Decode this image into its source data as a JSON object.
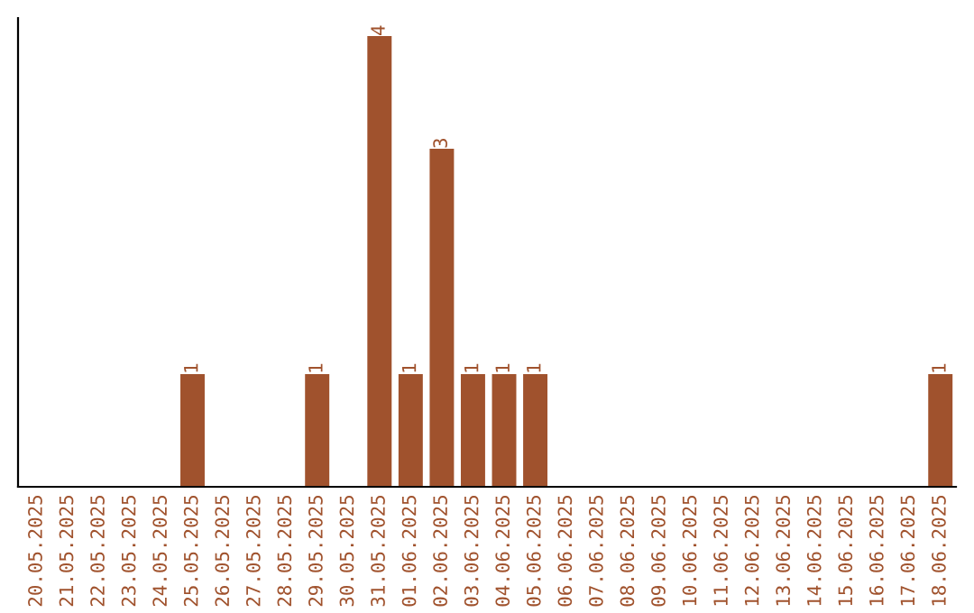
{
  "chart_data": {
    "type": "bar",
    "categories": [
      "20.05.2025",
      "21.05.2025",
      "22.05.2025",
      "23.05.2025",
      "24.05.2025",
      "25.05.2025",
      "26.05.2025",
      "27.05.2025",
      "28.05.2025",
      "29.05.2025",
      "30.05.2025",
      "31.05.2025",
      "01.06.2025",
      "02.06.2025",
      "03.06.2025",
      "04.06.2025",
      "05.06.2025",
      "06.06.2025",
      "07.06.2025",
      "08.06.2025",
      "09.06.2025",
      "10.06.2025",
      "11.06.2025",
      "12.06.2025",
      "13.06.2025",
      "14.06.2025",
      "15.06.2025",
      "16.06.2025",
      "17.06.2025",
      "18.06.2025"
    ],
    "values": [
      0,
      0,
      0,
      0,
      0,
      1,
      0,
      0,
      0,
      1,
      0,
      4,
      1,
      3,
      1,
      1,
      1,
      0,
      0,
      0,
      0,
      0,
      0,
      0,
      0,
      0,
      0,
      0,
      0,
      1
    ],
    "value_labels": [
      null,
      null,
      null,
      null,
      null,
      "1",
      null,
      null,
      null,
      "1",
      null,
      "4",
      "1",
      "3",
      "1",
      "1",
      "1",
      null,
      null,
      null,
      null,
      null,
      null,
      null,
      null,
      null,
      null,
      null,
      null,
      "1"
    ],
    "color": "#a0522d",
    "ylim": [
      0,
      4.16
    ],
    "tick_labels": "x",
    "grid": false,
    "legend": false
  }
}
